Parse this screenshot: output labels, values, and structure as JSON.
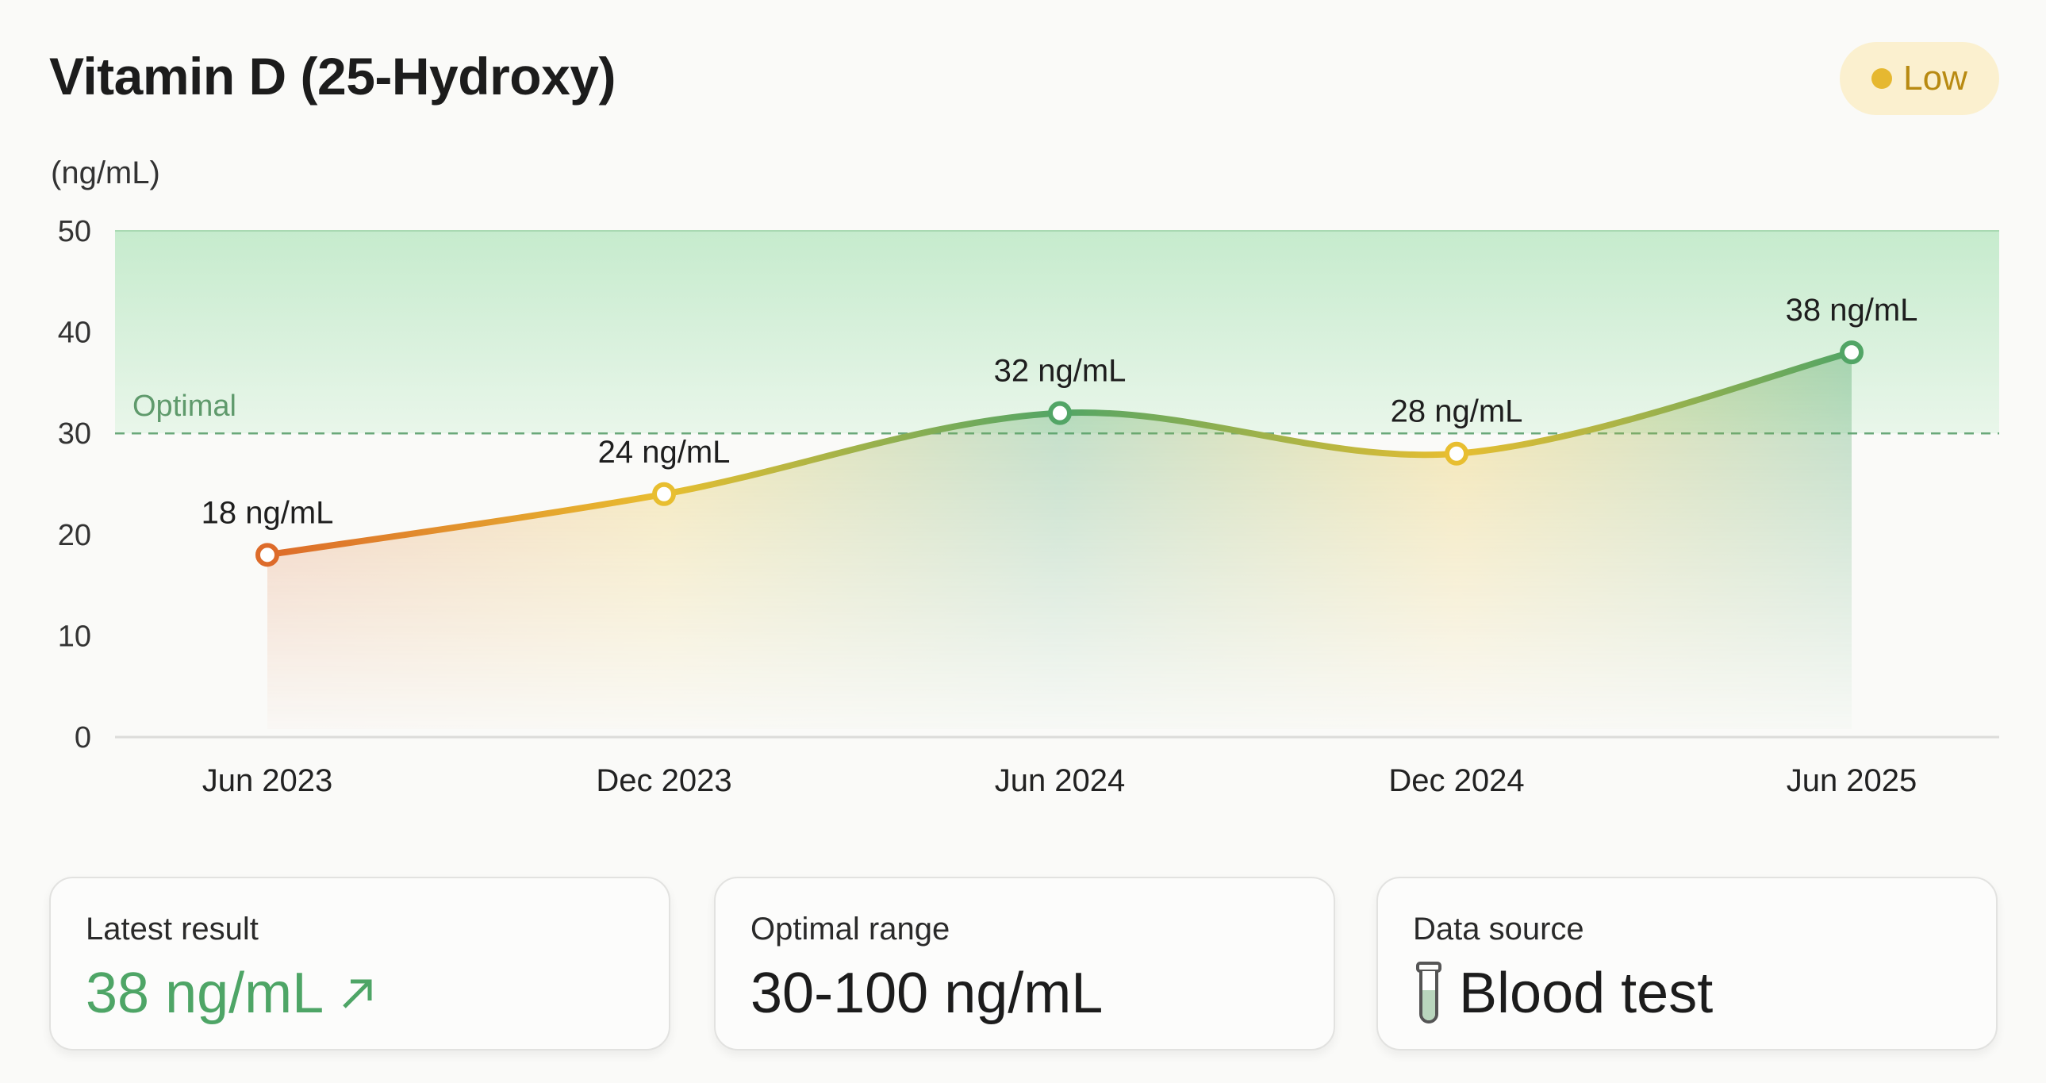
{
  "header": {
    "title": "Vitamin D (25-Hydroxy)",
    "status_badge": "Low",
    "status_color": "#e6b830"
  },
  "chart_data": {
    "type": "line",
    "ylabel": "(ng/mL)",
    "ylim": [
      0,
      50
    ],
    "yticks": [
      "0",
      "10",
      "20",
      "30",
      "40",
      "50"
    ],
    "categories": [
      "Jun 2023",
      "Dec 2023",
      "Jun 2024",
      "Dec 2024",
      "Jun 2025"
    ],
    "values": [
      18,
      24,
      32,
      28,
      38
    ],
    "data_labels": [
      "18 ng/mL",
      "24 ng/mL",
      "32 ng/mL",
      "28 ng/mL",
      "38 ng/mL"
    ],
    "optimal_band": {
      "label": "Optimal",
      "from": 30,
      "to": 50,
      "color": "#5aa96b"
    },
    "colors": {
      "low": "#dd6b2a",
      "borderline": "#e8be30",
      "optimal": "#52a566"
    },
    "grid": false
  },
  "cards": [
    {
      "label": "Latest result",
      "value": "38 ng/mL",
      "icon": "arrow-up-right-icon"
    },
    {
      "label": "Optimal range",
      "value": "30-100 ng/mL"
    },
    {
      "label": "Data source",
      "value": "Blood test",
      "icon": "test-tube-icon"
    }
  ]
}
